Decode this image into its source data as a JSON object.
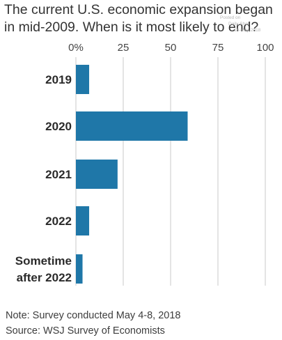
{
  "title": "The current U.S. economic expansion began in mid-2009. When is it most likely to end?",
  "watermark": {
    "line1": "Posted on",
    "line2": "Daily Shot",
    "line3": "16-May-2018"
  },
  "chart_data": {
    "type": "bar",
    "orientation": "horizontal",
    "title": "The current U.S. economic expansion began in mid-2009. When is it most likely to end?",
    "categories": [
      [
        "2019"
      ],
      [
        "2020"
      ],
      [
        "2021"
      ],
      [
        "2022"
      ],
      [
        "Sometime",
        "after 2022"
      ]
    ],
    "values": [
      7,
      59,
      22,
      7,
      3.5
    ],
    "xlim": [
      0,
      100
    ],
    "x_ticks": [
      0,
      25,
      50,
      75,
      100
    ],
    "x_tick_labels": [
      "0%",
      "25",
      "50",
      "75",
      "100"
    ],
    "xlabel": "",
    "ylabel": "",
    "grid": true,
    "bar_color": "#1f77a8",
    "grid_color": "#c9c9c9"
  },
  "notes": {
    "note": "Note: Survey conducted May 4-8, 2018",
    "source": "Source: WSJ Survey of Economists"
  }
}
